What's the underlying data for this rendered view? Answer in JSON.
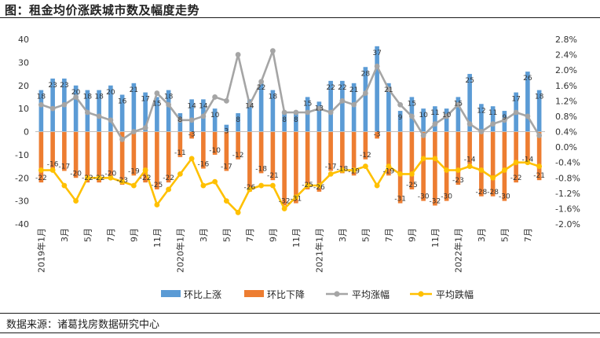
{
  "header": {
    "title": "图：租金均价涨跌城市数及幅度走势"
  },
  "footer": {
    "source": "数据来源：诸葛找房数据研究中心"
  },
  "chart_data": {
    "type": "bar",
    "title": "租金均价涨跌城市数及幅度走势",
    "x_tick_labels": [
      "2019年1月",
      "3月",
      "5月",
      "7月",
      "9月",
      "11月",
      "2020年1月",
      "3月",
      "5月",
      "7月",
      "9月",
      "11月",
      "2021年1月",
      "3月",
      "5月",
      "7月",
      "9月",
      "11月",
      "2022年1月",
      "3月",
      "5月",
      "7月"
    ],
    "left_axis": {
      "ylim": [
        -40,
        40
      ],
      "ticks": [
        -40,
        -30,
        -20,
        -10,
        0,
        10,
        20,
        30,
        40
      ]
    },
    "right_axis": {
      "ylim": [
        -2.0,
        2.8
      ],
      "ticks": [
        "-2.0%",
        "-1.6%",
        "-1.2%",
        "-0.8%",
        "-0.4%",
        "0.0%",
        "0.4%",
        "0.8%",
        "1.2%",
        "1.6%",
        "2.0%",
        "2.4%",
        "2.8%"
      ]
    },
    "series": [
      {
        "name": "环比上涨",
        "type": "bar",
        "axis": "left",
        "color": "#5B9BD5",
        "values": [
          18,
          23,
          23,
          20,
          18,
          18,
          20,
          16,
          21,
          17,
          15,
          18,
          8,
          14,
          14,
          10,
          3,
          8,
          14,
          22,
          18,
          8,
          8,
          15,
          13,
          22,
          22,
          21,
          28,
          37,
          21,
          9,
          15,
          10,
          11,
          10,
          15,
          25,
          12,
          11,
          9,
          17,
          26,
          18
        ],
        "labels": [
          "18",
          "23",
          "23",
          "20",
          "18",
          "18",
          "20",
          "16",
          "21",
          "17",
          "15",
          "18",
          "8",
          "14",
          "14",
          "10",
          "3",
          "8",
          "14",
          "22",
          "18",
          "8",
          "8",
          "15",
          "13",
          "22",
          "22",
          "21",
          "28",
          "37",
          "21",
          "9",
          "15",
          "10",
          "11",
          "10",
          "15",
          "25",
          "12",
          "11",
          "9",
          "17",
          "26",
          "18"
        ]
      },
      {
        "name": "环比下降",
        "type": "bar",
        "axis": "left",
        "color": "#ED7D31",
        "values": [
          -22,
          -16,
          -17,
          -20,
          -22,
          -22,
          -20,
          -23,
          -19,
          -22,
          -25,
          -22,
          -11,
          -3,
          -16,
          -10,
          -17,
          -12,
          -26,
          -18,
          -21,
          -32,
          -31,
          -25,
          -26,
          -17,
          -18,
          -19,
          -12,
          -3,
          -19,
          -31,
          -25,
          -30,
          -32,
          -30,
          -23,
          -14,
          -28,
          -28,
          -30,
          -22,
          -14,
          -21
        ],
        "labels": [
          "-22",
          "-16",
          "-17",
          "-20",
          "-22",
          "-22",
          "-20",
          "-23",
          "-19",
          "-22",
          "-25",
          "-22",
          "-11",
          "-3",
          "-16",
          "-10",
          "-17",
          "-12",
          "-26",
          "-18",
          "-21",
          "-32",
          "-31",
          "-25",
          "-26",
          "-17",
          "-18",
          "-19",
          "-12",
          "-3",
          "-19",
          "-31",
          "-25",
          "-30",
          "-32",
          "-30",
          "-23",
          "-14",
          "-28",
          "-28",
          "-30",
          "-22",
          "-14",
          "-21"
        ]
      },
      {
        "name": "平均涨幅",
        "type": "line",
        "axis": "right",
        "color": "#A5A5A5",
        "values": [
          1.1,
          1.0,
          1.1,
          1.3,
          0.9,
          0.8,
          0.7,
          0.2,
          0.4,
          0.5,
          1.4,
          1.1,
          0.7,
          0.7,
          0.8,
          1.3,
          1.2,
          2.4,
          1.1,
          1.7,
          2.5,
          0.9,
          0.9,
          0.9,
          1.0,
          0.9,
          1.2,
          1.1,
          1.4,
          2.1,
          1.5,
          1.1,
          0.8,
          0.3,
          0.6,
          0.8,
          1.1,
          0.6,
          0.4,
          0.6,
          0.7,
          0.9,
          0.8,
          0.3
        ]
      },
      {
        "name": "平均跌幅",
        "type": "line",
        "axis": "right",
        "color": "#FFC000",
        "values": [
          -0.6,
          -0.6,
          -1.0,
          -1.4,
          -0.8,
          -0.8,
          -0.8,
          -0.9,
          -1.0,
          -0.6,
          -1.5,
          -1.1,
          -0.7,
          -0.3,
          -1.0,
          -0.9,
          -1.4,
          -1.7,
          -1.1,
          -1.0,
          -1.0,
          -1.6,
          -1.3,
          -1.0,
          -1.0,
          -0.7,
          -0.6,
          -0.6,
          -0.5,
          -1.0,
          -0.5,
          -0.7,
          -0.7,
          -0.3,
          -0.3,
          -0.6,
          -0.6,
          -0.5,
          -0.6,
          -0.8,
          -0.6,
          -0.4,
          -0.4,
          -0.5
        ]
      }
    ],
    "legend": {
      "placement": "bottom",
      "entries": [
        "环比上涨",
        "环比下降",
        "平均涨幅",
        "平均跌幅"
      ]
    },
    "grid": false
  }
}
